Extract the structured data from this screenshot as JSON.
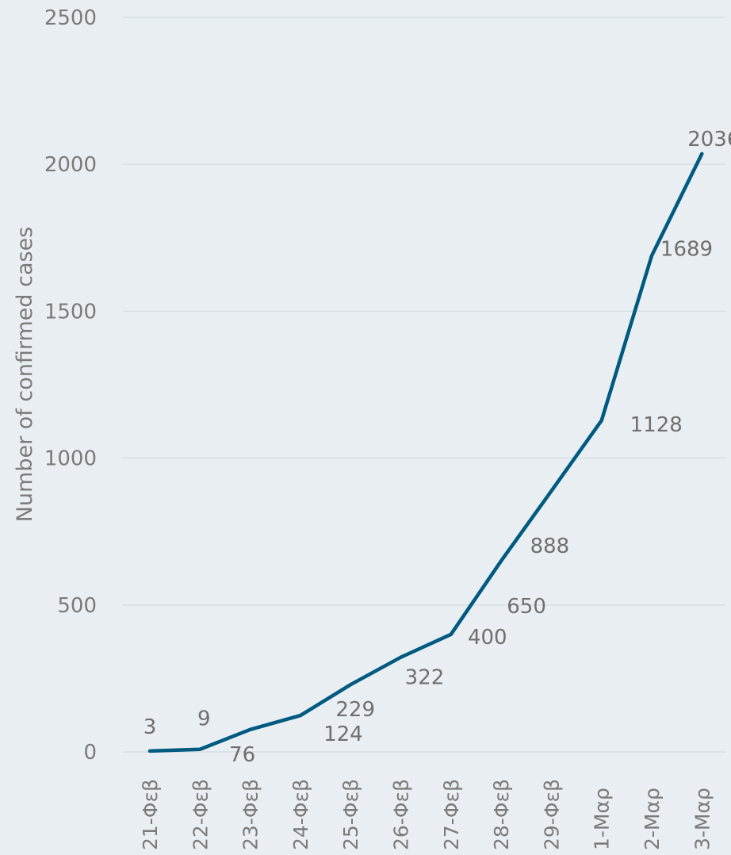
{
  "chart_data": {
    "type": "line",
    "title": "",
    "xlabel": "",
    "ylabel": "Number of confirmed cases",
    "categories": [
      "21-Φεβ",
      "22-Φεβ",
      "23-Φεβ",
      "24-Φεβ",
      "25-Φεβ",
      "26-Φεβ",
      "27-Φεβ",
      "28-Φεβ",
      "29-Φεβ",
      "1-Μαρ",
      "2-Μαρ",
      "3-Μαρ"
    ],
    "series": [
      {
        "values": [
          3,
          9,
          76,
          124,
          229,
          322,
          400,
          650,
          888,
          1128,
          1689,
          2036
        ],
        "color": "#00597f"
      }
    ],
    "ylim": [
      0,
      2500
    ],
    "yticks": [
      0,
      500,
      1000,
      1500,
      2000,
      2500
    ],
    "grid": true,
    "legend": "none",
    "data_labels": true
  }
}
